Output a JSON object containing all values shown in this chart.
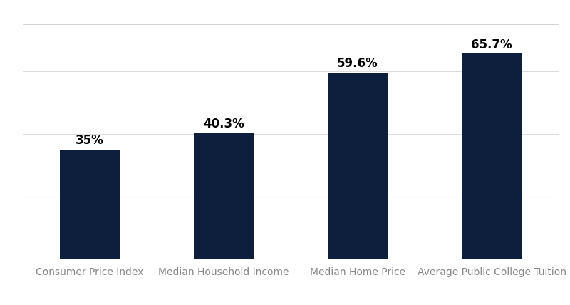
{
  "categories": [
    "Consumer Price Index",
    "Median Household Income",
    "Median Home Price",
    "Average Public College Tuition"
  ],
  "values": [
    35,
    40.3,
    59.6,
    65.7
  ],
  "labels": [
    "35%",
    "40.3%",
    "59.6%",
    "65.7%"
  ],
  "bar_color": "#0d1f3c",
  "background_color": "#ffffff",
  "grid_color": "#dddddd",
  "ylim": [
    0,
    75
  ],
  "yticks": [
    0,
    20,
    40,
    60
  ],
  "bar_width": 0.45,
  "label_fontsize": 12,
  "tick_fontsize": 10,
  "label_fontweight": "bold",
  "tick_color": "#888888",
  "top_line_color": "#cccccc",
  "bottom_line_color": "#aaaaaa"
}
